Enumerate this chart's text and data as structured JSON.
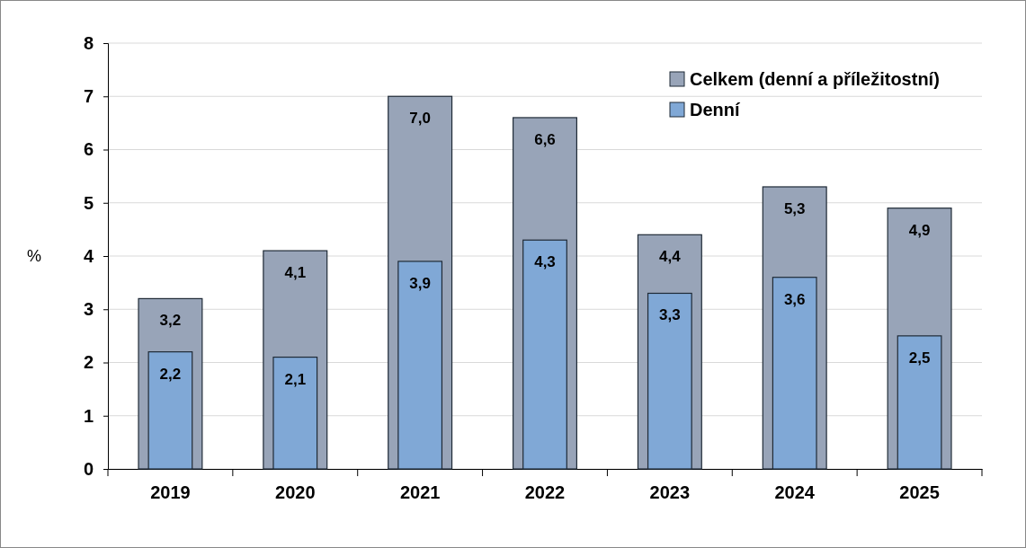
{
  "chart_data": {
    "type": "bar",
    "ylabel": "%",
    "categories": [
      "2019",
      "2020",
      "2021",
      "2022",
      "2023",
      "2024",
      "2025"
    ],
    "series": [
      {
        "name": "Celkem (denní a příležitostní)",
        "color": "#98a4b8",
        "values": [
          3.2,
          4.1,
          7.0,
          6.6,
          4.4,
          5.3,
          4.9
        ],
        "value_labels": [
          "3,2",
          "4,1",
          "7,0",
          "6,6",
          "4,4",
          "5,3",
          "4,9"
        ]
      },
      {
        "name": "Denní",
        "color": "#80a8d6",
        "values": [
          2.2,
          2.1,
          3.9,
          4.3,
          3.3,
          3.6,
          2.5
        ],
        "value_labels": [
          "2,2",
          "2,1",
          "3,9",
          "4,3",
          "3,3",
          "3,6",
          "2,5"
        ]
      }
    ],
    "ylim": [
      0,
      8
    ],
    "yticks": [
      0,
      1,
      2,
      3,
      4,
      5,
      6,
      7,
      8
    ],
    "grid": "y",
    "legend": "top right"
  }
}
